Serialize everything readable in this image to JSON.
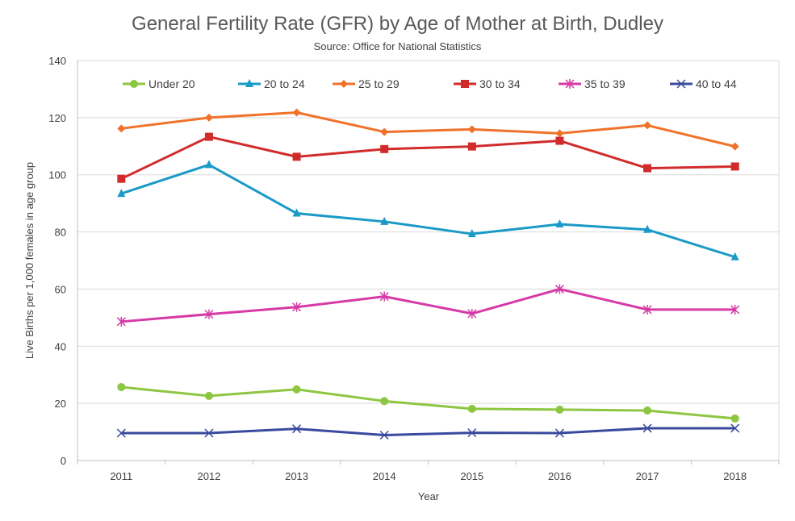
{
  "chart_data": {
    "type": "line",
    "title": "General Fertility Rate (GFR) by Age of Mother at Birth, Dudley",
    "subtitle": "Source: Office for National Statistics",
    "xlabel": "Year",
    "ylabel": "Live Births per 1,000 females in age group",
    "ylim": [
      0,
      140
    ],
    "yticks": [
      "0",
      "20",
      "40",
      "60",
      "80",
      "100",
      "120",
      "140"
    ],
    "grid": true,
    "legend_position": "top",
    "categories": [
      "2011",
      "2012",
      "2013",
      "2014",
      "2015",
      "2016",
      "2017",
      "2018"
    ],
    "series": [
      {
        "name": "Under 20",
        "color": "#8DC641",
        "marker": "circle",
        "values": [
          25.7,
          22.6,
          24.9,
          20.8,
          18.1,
          17.8,
          17.5,
          14.7
        ]
      },
      {
        "name": "20 to 24",
        "color": "#1A9AC6",
        "marker": "triangle",
        "values": [
          93.4,
          103.5,
          86.5,
          83.6,
          79.3,
          82.7,
          80.8,
          71.2
        ]
      },
      {
        "name": "25 to 29",
        "color": "#F0722A",
        "marker": "diamond",
        "values": [
          116.2,
          120.0,
          121.8,
          115.0,
          115.9,
          114.5,
          117.3,
          109.9
        ]
      },
      {
        "name": "30 to 34",
        "color": "#D12B2B",
        "marker": "square",
        "values": [
          98.6,
          113.3,
          106.3,
          109.0,
          109.9,
          111.9,
          102.3,
          102.9
        ]
      },
      {
        "name": "35 to 39",
        "color": "#D63AA6",
        "marker": "star",
        "values": [
          48.6,
          51.2,
          53.7,
          57.4,
          51.4,
          60.0,
          52.8,
          52.8
        ]
      },
      {
        "name": "40 to 44",
        "color": "#3A4A9E",
        "marker": "x",
        "values": [
          9.6,
          9.6,
          11.1,
          8.9,
          9.7,
          9.6,
          11.3,
          11.3
        ]
      }
    ]
  }
}
